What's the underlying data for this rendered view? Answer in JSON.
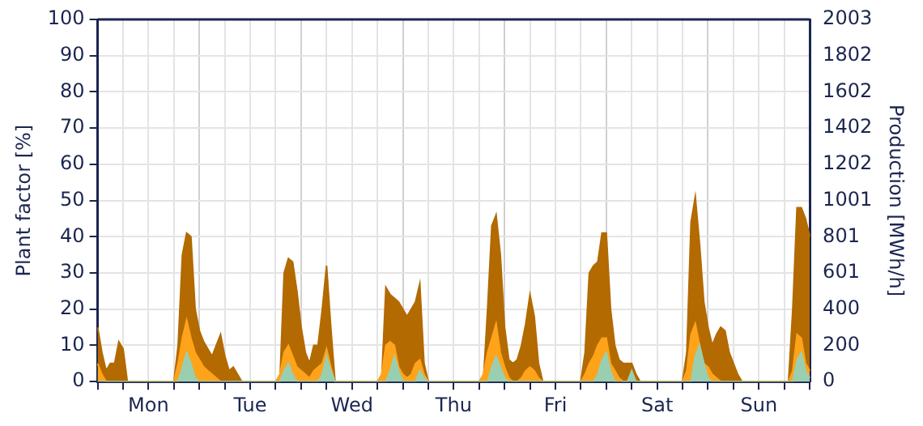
{
  "chart_data": {
    "type": "area",
    "ylabel": "Plant factor [%]",
    "y2label": "Production [MWh/h]",
    "grid": true,
    "legend": false,
    "categories": [
      null,
      null,
      null,
      null,
      null,
      null,
      null,
      null,
      null,
      null,
      null,
      null,
      "Mon",
      null,
      null,
      null,
      null,
      null,
      null,
      null,
      null,
      null,
      null,
      null,
      null,
      null,
      null,
      null,
      null,
      null,
      null,
      null,
      null,
      null,
      null,
      null,
      "Tue",
      null,
      null,
      null,
      null,
      null,
      null,
      null,
      null,
      null,
      null,
      null,
      null,
      null,
      null,
      null,
      null,
      null,
      null,
      null,
      null,
      null,
      null,
      null,
      "Wed",
      null,
      null,
      null,
      null,
      null,
      null,
      null,
      null,
      null,
      null,
      null,
      null,
      null,
      null,
      null,
      null,
      null,
      null,
      null,
      null,
      null,
      null,
      null,
      "Thu",
      null,
      null,
      null,
      null,
      null,
      null,
      null,
      null,
      null,
      null,
      null,
      null,
      null,
      null,
      null,
      null,
      null,
      null,
      null,
      null,
      null,
      null,
      null,
      "Fri",
      null,
      null,
      null,
      null,
      null,
      null,
      null,
      null,
      null,
      null,
      null,
      null,
      null,
      null,
      null,
      null,
      null,
      null,
      null,
      null,
      null,
      null,
      null,
      "Sat",
      null,
      null,
      null,
      null,
      null,
      null,
      null,
      null,
      null,
      null,
      null,
      null,
      null,
      null,
      null,
      null,
      null,
      null,
      null,
      null,
      null,
      null,
      null,
      "Sun",
      null,
      null,
      null,
      null,
      null,
      null,
      null,
      null,
      null,
      null,
      null,
      null
    ],
    "ylim": [
      0,
      100
    ],
    "yticks": [
      0,
      10,
      20,
      30,
      40,
      50,
      60,
      70,
      80,
      90,
      100
    ],
    "y2lim": [
      0,
      2003
    ],
    "y2ticks": [
      0,
      200,
      400,
      601,
      801,
      1001,
      1202,
      1402,
      1602,
      1802,
      2003
    ],
    "series": [
      {
        "color": "#b36a00",
        "values": [
          15,
          8,
          3,
          5,
          5,
          11,
          9,
          0,
          0,
          0,
          0,
          0,
          0,
          0,
          0,
          0,
          0,
          0,
          0,
          10,
          35,
          41,
          40,
          20,
          14,
          11,
          9,
          7,
          10,
          13,
          7,
          3,
          4,
          2,
          0,
          0,
          0,
          0,
          0,
          0,
          0,
          0,
          0,
          0,
          30,
          34,
          33,
          25,
          15,
          8,
          5,
          10,
          10,
          20,
          32,
          15,
          0,
          0,
          0,
          0,
          0,
          0,
          0,
          0,
          0,
          0,
          0,
          0,
          26,
          24,
          23,
          22,
          20,
          18,
          20,
          22,
          27,
          5,
          0,
          0,
          0,
          0,
          0,
          0,
          0,
          0,
          0,
          0,
          0,
          0,
          0,
          0,
          20,
          43,
          46,
          35,
          15,
          6,
          5,
          6,
          10,
          16,
          24,
          18,
          5,
          0,
          0,
          0,
          0,
          0,
          0,
          0,
          0,
          0,
          0,
          8,
          30,
          32,
          33,
          41,
          41,
          20,
          10,
          6,
          5,
          5,
          5,
          2,
          0,
          0,
          0,
          0,
          0,
          0,
          0,
          0,
          0,
          0,
          0,
          8,
          44,
          51,
          38,
          22,
          15,
          10,
          13,
          15,
          14,
          8,
          5,
          2,
          0,
          0,
          0,
          0,
          0,
          0,
          0,
          0,
          0,
          0,
          0,
          0,
          20,
          48,
          48,
          45,
          40
        ]
      },
      {
        "color": "#ffa31a",
        "values": [
          5,
          2,
          0,
          0,
          0,
          0,
          0,
          0,
          0,
          0,
          0,
          0,
          0,
          0,
          0,
          0,
          0,
          0,
          0,
          5,
          12,
          17,
          12,
          8,
          6,
          4,
          3,
          2,
          1,
          0,
          0,
          0,
          0,
          0,
          0,
          0,
          0,
          0,
          0,
          0,
          0,
          0,
          0,
          2,
          8,
          10,
          7,
          4,
          3,
          2,
          1,
          3,
          4,
          5,
          9,
          4,
          0,
          0,
          0,
          0,
          0,
          0,
          0,
          0,
          0,
          0,
          0,
          2,
          10,
          11,
          10,
          4,
          2,
          1,
          2,
          5,
          6,
          2,
          0,
          0,
          0,
          0,
          0,
          0,
          0,
          0,
          0,
          0,
          0,
          0,
          0,
          2,
          8,
          12,
          16,
          8,
          4,
          1,
          0,
          0,
          1,
          3,
          4,
          3,
          1,
          0,
          0,
          0,
          0,
          0,
          0,
          0,
          0,
          0,
          0,
          2,
          5,
          7,
          10,
          12,
          12,
          5,
          3,
          1,
          0,
          0,
          0,
          0,
          0,
          0,
          0,
          0,
          0,
          0,
          0,
          0,
          0,
          0,
          0,
          3,
          13,
          16,
          10,
          5,
          4,
          2,
          1,
          0,
          0,
          0,
          0,
          0,
          0,
          0,
          0,
          0,
          0,
          0,
          0,
          0,
          0,
          0,
          0,
          0,
          3,
          13,
          12,
          5,
          3
        ]
      },
      {
        "color": "#99cfb0",
        "values": [
          0,
          0,
          0,
          0,
          0,
          0,
          0,
          0,
          0,
          0,
          0,
          0,
          0,
          0,
          0,
          0,
          0,
          0,
          0,
          0,
          4,
          8,
          5,
          1,
          0,
          0,
          0,
          0,
          0,
          0,
          0,
          0,
          0,
          0,
          0,
          0,
          0,
          0,
          0,
          0,
          0,
          0,
          0,
          0,
          3,
          5,
          2,
          0,
          0,
          0,
          0,
          0,
          0,
          2,
          7,
          3,
          0,
          0,
          0,
          0,
          0,
          0,
          0,
          0,
          0,
          0,
          0,
          0,
          0,
          3,
          7,
          3,
          0,
          0,
          0,
          0,
          3,
          1,
          0,
          0,
          0,
          0,
          0,
          0,
          0,
          0,
          0,
          0,
          0,
          0,
          0,
          0,
          0,
          4,
          7,
          4,
          1,
          0,
          0,
          0,
          0,
          0,
          0,
          0,
          0,
          0,
          0,
          0,
          0,
          0,
          0,
          0,
          0,
          0,
          0,
          0,
          0,
          0,
          2,
          6,
          8,
          3,
          0,
          0,
          0,
          0,
          3,
          0,
          0,
          0,
          0,
          0,
          0,
          0,
          0,
          0,
          0,
          0,
          0,
          0,
          0,
          7,
          10,
          5,
          1,
          0,
          0,
          0,
          0,
          0,
          0,
          0,
          0,
          0,
          0,
          0,
          0,
          0,
          0,
          0,
          0,
          0,
          0,
          0,
          0,
          6,
          8,
          3,
          1
        ]
      }
    ]
  }
}
